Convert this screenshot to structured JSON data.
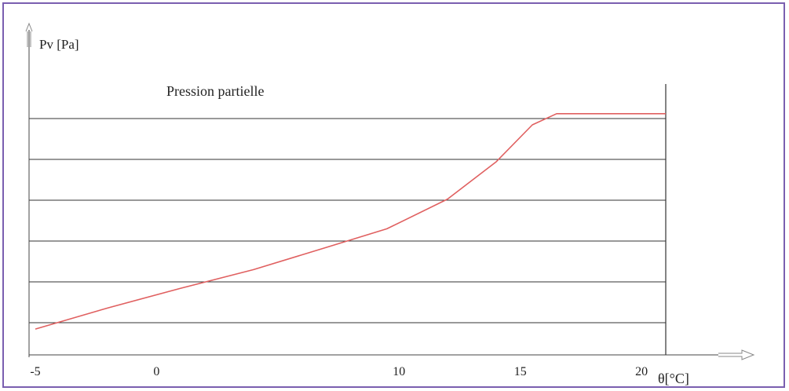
{
  "chart_data": {
    "type": "line",
    "ylabel": "Pv [Pa]",
    "xlabel": "θ[°C]",
    "annotation": "Pression partielle",
    "x_ticks": [
      {
        "label": "-5",
        "value": -5
      },
      {
        "label": "0",
        "value": 0
      },
      {
        "label": "10",
        "value": 10
      },
      {
        "label": "15",
        "value": 15
      },
      {
        "label": "20",
        "value": 20
      }
    ],
    "xlim": [
      -5,
      21
    ],
    "ylim": [
      0,
      7
    ],
    "grid": true,
    "grid_lines_y": [
      1,
      2,
      3,
      4,
      5,
      6
    ],
    "series": [
      {
        "color": "#e06060",
        "x": [
          -5,
          -2,
          1,
          4,
          7,
          9.5,
          12,
          14,
          15.5,
          16.5,
          21
        ],
        "y": [
          0.4,
          0.97,
          1.5,
          2.0,
          2.6,
          3.1,
          3.9,
          4.9,
          5.9,
          6.2,
          6.2
        ]
      }
    ]
  }
}
